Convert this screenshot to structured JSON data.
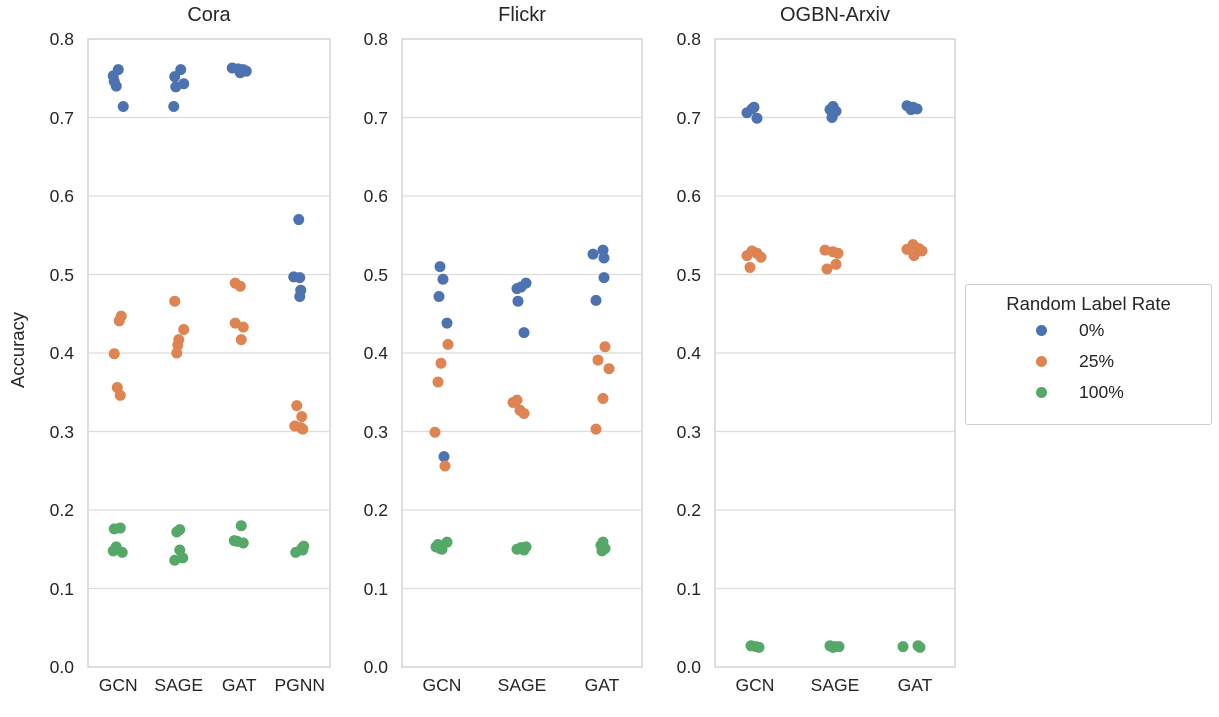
{
  "chart_data": {
    "type": "scatter",
    "subtype": "strip-plot",
    "ylabel": "Accuracy",
    "ylim": [
      0.0,
      0.8
    ],
    "yticks": [
      "0.0",
      "0.1",
      "0.2",
      "0.3",
      "0.4",
      "0.5",
      "0.6",
      "0.7",
      "0.8"
    ],
    "grid": true,
    "legend": {
      "title": "Random Label Rate",
      "position": "center-right",
      "entries": [
        {
          "label": "0%",
          "color": "#4c72b0"
        },
        {
          "label": "25%",
          "color": "#dd8452"
        },
        {
          "label": "100%",
          "color": "#55a868"
        }
      ]
    },
    "panels": [
      {
        "title": "Cora",
        "categories": [
          "GCN",
          "SAGE",
          "GAT",
          "PGNN"
        ],
        "series": [
          {
            "name": "0%",
            "color": "#4c72b0",
            "points": {
              "GCN": [
                [
                  0.761,
                  0
                ],
                [
                  0.753,
                  -5
                ],
                [
                  0.746,
                  -4
                ],
                [
                  0.74,
                  -2
                ],
                [
                  0.714,
                  5
                ]
              ],
              "SAGE": [
                [
                  0.761,
                  2
                ],
                [
                  0.752,
                  -4
                ],
                [
                  0.743,
                  5
                ],
                [
                  0.739,
                  -3
                ],
                [
                  0.714,
                  -5
                ]
              ],
              "GAT": [
                [
                  0.763,
                  -7
                ],
                [
                  0.762,
                  -1
                ],
                [
                  0.761,
                  4
                ],
                [
                  0.759,
                  7
                ],
                [
                  0.757,
                  1
                ]
              ],
              "PGNN": [
                [
                  0.57,
                  -1
                ],
                [
                  0.497,
                  -6
                ],
                [
                  0.496,
                  0
                ],
                [
                  0.48,
                  1
                ],
                [
                  0.472,
                  0
                ]
              ]
            }
          },
          {
            "name": "25%",
            "color": "#dd8452",
            "points": {
              "GCN": [
                [
                  0.447,
                  3
                ],
                [
                  0.441,
                  1
                ],
                [
                  0.399,
                  -4
                ],
                [
                  0.356,
                  -1
                ],
                [
                  0.346,
                  2
                ]
              ],
              "SAGE": [
                [
                  0.466,
                  -4
                ],
                [
                  0.43,
                  5
                ],
                [
                  0.417,
                  0
                ],
                [
                  0.41,
                  -1
                ],
                [
                  0.4,
                  -2
                ]
              ],
              "GAT": [
                [
                  0.489,
                  -4
                ],
                [
                  0.485,
                  1
                ],
                [
                  0.438,
                  -4
                ],
                [
                  0.433,
                  4
                ],
                [
                  0.417,
                  2
                ]
              ],
              "PGNN": [
                [
                  0.333,
                  -3
                ],
                [
                  0.319,
                  2
                ],
                [
                  0.307,
                  -5
                ],
                [
                  0.305,
                  1
                ],
                [
                  0.303,
                  3
                ]
              ]
            }
          },
          {
            "name": "100%",
            "color": "#55a868",
            "points": {
              "GCN": [
                [
                  0.177,
                  2
                ],
                [
                  0.176,
                  -4
                ],
                [
                  0.153,
                  -2
                ],
                [
                  0.148,
                  -5
                ],
                [
                  0.146,
                  4
                ]
              ],
              "SAGE": [
                [
                  0.175,
                  1
                ],
                [
                  0.172,
                  -2
                ],
                [
                  0.149,
                  1
                ],
                [
                  0.139,
                  4
                ],
                [
                  0.136,
                  -4
                ]
              ],
              "GAT": [
                [
                  0.18,
                  2
                ],
                [
                  0.161,
                  -5
                ],
                [
                  0.16,
                  -2
                ],
                [
                  0.158,
                  4
                ]
              ],
              "PGNN": [
                [
                  0.154,
                  4
                ],
                [
                  0.151,
                  2
                ],
                [
                  0.149,
                  3
                ],
                [
                  0.146,
                  -4
                ]
              ]
            }
          }
        ]
      },
      {
        "title": "Flickr",
        "categories": [
          "GCN",
          "SAGE",
          "GAT"
        ],
        "series": [
          {
            "name": "0%",
            "color": "#4c72b0",
            "points": {
              "GCN": [
                [
                  0.51,
                  -2
                ],
                [
                  0.494,
                  1
                ],
                [
                  0.472,
                  -3
                ],
                [
                  0.438,
                  5
                ],
                [
                  0.268,
                  2
                ]
              ],
              "SAGE": [
                [
                  0.489,
                  4
                ],
                [
                  0.484,
                  -1
                ],
                [
                  0.482,
                  -5
                ],
                [
                  0.466,
                  -4
                ],
                [
                  0.426,
                  2
                ]
              ],
              "GAT": [
                [
                  0.531,
                  1
                ],
                [
                  0.526,
                  -9
                ],
                [
                  0.521,
                  2
                ],
                [
                  0.496,
                  2
                ],
                [
                  0.467,
                  -6
                ]
              ]
            }
          },
          {
            "name": "25%",
            "color": "#dd8452",
            "points": {
              "GCN": [
                [
                  0.411,
                  6
                ],
                [
                  0.387,
                  -1
                ],
                [
                  0.363,
                  -4
                ],
                [
                  0.299,
                  -7
                ],
                [
                  0.256,
                  3
                ]
              ],
              "SAGE": [
                [
                  0.34,
                  -5
                ],
                [
                  0.337,
                  -9
                ],
                [
                  0.327,
                  -2
                ],
                [
                  0.323,
                  2
                ]
              ],
              "GAT": [
                [
                  0.408,
                  3
                ],
                [
                  0.391,
                  -4
                ],
                [
                  0.38,
                  7
                ],
                [
                  0.342,
                  1
                ],
                [
                  0.303,
                  -6
                ]
              ]
            }
          },
          {
            "name": "100%",
            "color": "#55a868",
            "points": {
              "GCN": [
                [
                  0.159,
                  5
                ],
                [
                  0.156,
                  -4
                ],
                [
                  0.153,
                  -6
                ],
                [
                  0.151,
                  -2
                ],
                [
                  0.15,
                  0
                ]
              ],
              "SAGE": [
                [
                  0.153,
                  4
                ],
                [
                  0.152,
                  -1
                ],
                [
                  0.15,
                  -5
                ],
                [
                  0.149,
                  2
                ]
              ],
              "GAT": [
                [
                  0.159,
                  1
                ],
                [
                  0.155,
                  -1
                ],
                [
                  0.151,
                  3
                ],
                [
                  0.148,
                  0
                ]
              ]
            }
          }
        ]
      },
      {
        "title": "OGBN-Arxiv",
        "categories": [
          "GCN",
          "SAGE",
          "GAT"
        ],
        "series": [
          {
            "name": "0%",
            "color": "#4c72b0",
            "points": {
              "GCN": [
                [
                  0.713,
                  -1
                ],
                [
                  0.711,
                  -3
                ],
                [
                  0.706,
                  -8
                ],
                [
                  0.699,
                  2
                ]
              ],
              "SAGE": [
                [
                  0.714,
                  -2
                ],
                [
                  0.71,
                  -5
                ],
                [
                  0.708,
                  1
                ],
                [
                  0.7,
                  -3
                ]
              ],
              "GAT": [
                [
                  0.715,
                  -8
                ],
                [
                  0.713,
                  -2
                ],
                [
                  0.711,
                  2
                ],
                [
                  0.71,
                  -4
                ]
              ]
            }
          },
          {
            "name": "25%",
            "color": "#dd8452",
            "points": {
              "GCN": [
                [
                  0.53,
                  -3
                ],
                [
                  0.527,
                  2
                ],
                [
                  0.524,
                  -8
                ],
                [
                  0.522,
                  6
                ],
                [
                  0.509,
                  -5
                ]
              ],
              "SAGE": [
                [
                  0.531,
                  -10
                ],
                [
                  0.529,
                  -2
                ],
                [
                  0.527,
                  3
                ],
                [
                  0.513,
                  1
                ],
                [
                  0.507,
                  -8
                ]
              ],
              "GAT": [
                [
                  0.538,
                  -2
                ],
                [
                  0.533,
                  4
                ],
                [
                  0.532,
                  -8
                ],
                [
                  0.53,
                  7
                ],
                [
                  0.524,
                  -1
                ]
              ]
            }
          },
          {
            "name": "100%",
            "color": "#55a868",
            "points": {
              "GCN": [
                [
                  0.027,
                  -4
                ],
                [
                  0.026,
                  1
                ],
                [
                  0.025,
                  4
                ]
              ],
              "SAGE": [
                [
                  0.027,
                  -5
                ],
                [
                  0.026,
                  0
                ],
                [
                  0.026,
                  4
                ],
                [
                  0.025,
                  -2
                ]
              ],
              "GAT": [
                [
                  0.026,
                  -12
                ],
                [
                  0.027,
                  3
                ],
                [
                  0.025,
                  5
                ]
              ]
            }
          }
        ]
      }
    ],
    "style": {
      "grid_color": "#dcdcdc",
      "spine_color": "#cccccc",
      "text_color": "#262626",
      "dot_radius": 5.5
    }
  }
}
